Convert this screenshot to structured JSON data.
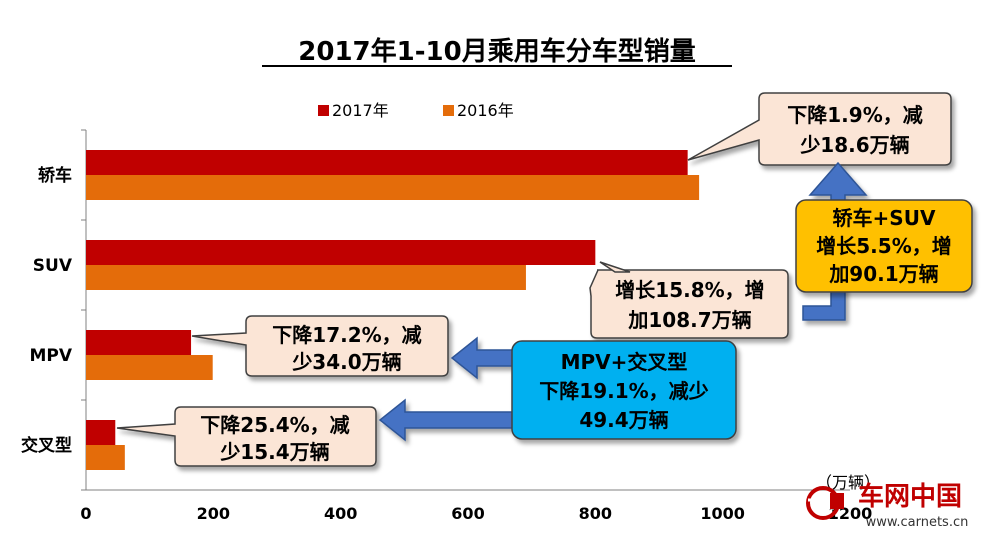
{
  "chart_data": {
    "type": "bar",
    "orientation": "horizontal",
    "title": "2017年1-10月乘用车分车型销量",
    "unit_label": "（万辆）",
    "categories": [
      "轿车",
      "SUV",
      "MPV",
      "交叉型"
    ],
    "series": [
      {
        "name": "2017年",
        "color": "#C00000",
        "values": [
          945,
          800,
          165,
          46
        ]
      },
      {
        "name": "2016年",
        "color": "#E46C0A",
        "values": [
          963,
          691,
          199,
          61
        ]
      }
    ],
    "xlim": [
      0,
      1200
    ],
    "xticks": [
      0,
      200,
      400,
      600,
      800,
      1000,
      1200
    ],
    "grid": false,
    "legend_position": "top",
    "callouts": [
      {
        "id": "sedan",
        "lines": [
          "下降1.9%，减",
          "少18.6万辆"
        ],
        "fill": "#FBE5D6"
      },
      {
        "id": "suv",
        "lines": [
          "增长15.8%，增",
          "加108.7万辆"
        ],
        "fill": "#FBE5D6"
      },
      {
        "id": "mpv",
        "lines": [
          "下降17.2%，减",
          "少34.0万辆"
        ],
        "fill": "#FBE5D6"
      },
      {
        "id": "cross",
        "lines": [
          "下降25.4%，减",
          "少15.4万辆"
        ],
        "fill": "#FBE5D6"
      },
      {
        "id": "sedan_suv",
        "lines": [
          "轿车+SUV",
          "增长5.5%，增",
          "加90.1万辆"
        ],
        "fill": "#FFC000"
      },
      {
        "id": "mpv_cross",
        "lines": [
          "MPV+交叉型",
          "下降19.1%，减少",
          "49.4万辆"
        ],
        "fill": "#00B0F0"
      }
    ]
  },
  "watermark": {
    "name": "车网中国",
    "url": "www.carnets.cn"
  },
  "colors": {
    "arrow_blue": "#4472C4",
    "callout_border": "#404040"
  }
}
